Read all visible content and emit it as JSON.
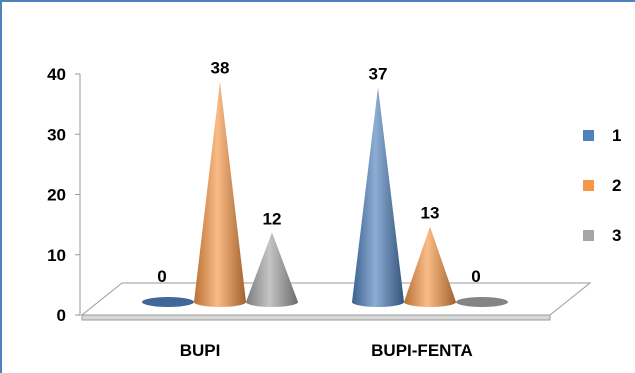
{
  "chart_data": {
    "type": "bar",
    "style": "3d-cone",
    "categories": [
      "BUPI",
      "BUPI-FENTA"
    ],
    "series": [
      {
        "name": "1",
        "color": "#4f81bd",
        "values": [
          0,
          37
        ]
      },
      {
        "name": "2",
        "color": "#f79646",
        "values": [
          38,
          13
        ]
      },
      {
        "name": "3",
        "color": "#a5a5a5",
        "values": [
          12,
          0
        ]
      }
    ],
    "title": "",
    "xlabel": "",
    "ylabel": "",
    "ylim": [
      0,
      40
    ],
    "yticks": [
      "0",
      "10",
      "20",
      "30",
      "40"
    ],
    "grid": false,
    "legend": "right"
  }
}
